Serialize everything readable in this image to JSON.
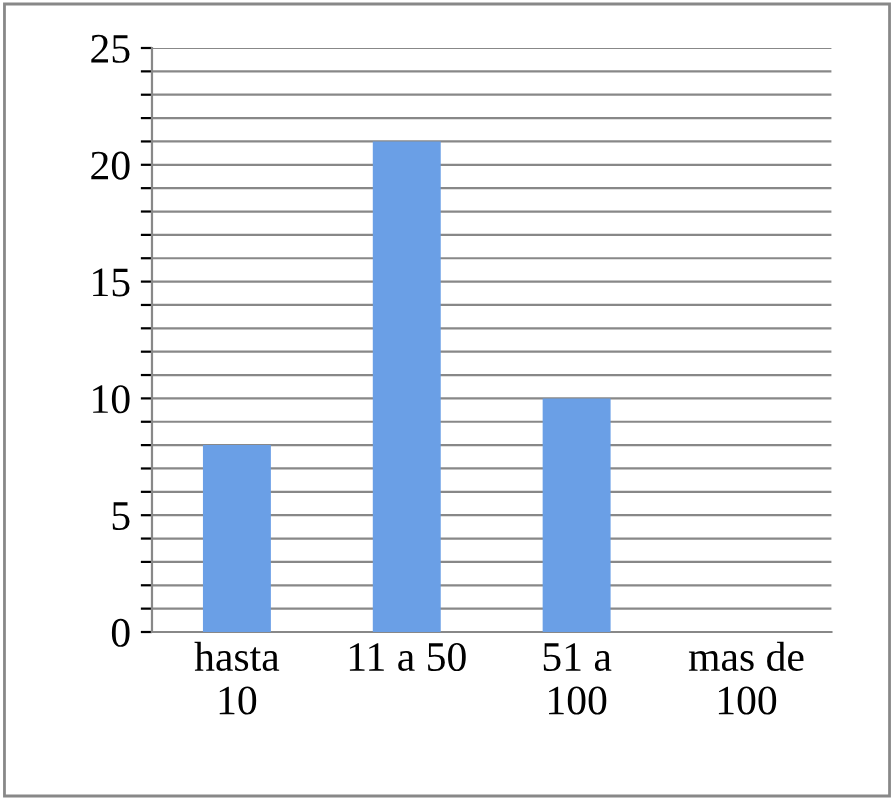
{
  "chart_data": {
    "type": "bar",
    "categories": [
      "hasta\n10",
      "11 a 50",
      "51 a\n100",
      "mas de\n100"
    ],
    "values": [
      8,
      21,
      10,
      0
    ],
    "color": "#6a9fe6",
    "ylim": [
      0,
      25
    ],
    "yticks": [
      0,
      {
        "value": 1,
        "label": null
      },
      {
        "value": 2,
        "label": null
      },
      {
        "value": 3,
        "label": null
      },
      {
        "value": 4,
        "label": null
      },
      5,
      {
        "value": 6,
        "label": null
      },
      {
        "value": 7,
        "label": null
      },
      {
        "value": 8,
        "label": null
      },
      {
        "value": 9,
        "label": null
      },
      10,
      {
        "value": 11,
        "label": null
      },
      {
        "value": 12,
        "label": null
      },
      {
        "value": 13,
        "label": null
      },
      {
        "value": 14,
        "label": null
      },
      15,
      {
        "value": 16,
        "label": null
      },
      {
        "value": 17,
        "label": null
      },
      {
        "value": 18,
        "label": null
      },
      {
        "value": 19,
        "label": null
      },
      20,
      {
        "value": 21,
        "label": null
      },
      {
        "value": 22,
        "label": null
      },
      {
        "value": 23,
        "label": null
      },
      {
        "value": 24,
        "label": null
      },
      25
    ],
    "grid": "y"
  }
}
